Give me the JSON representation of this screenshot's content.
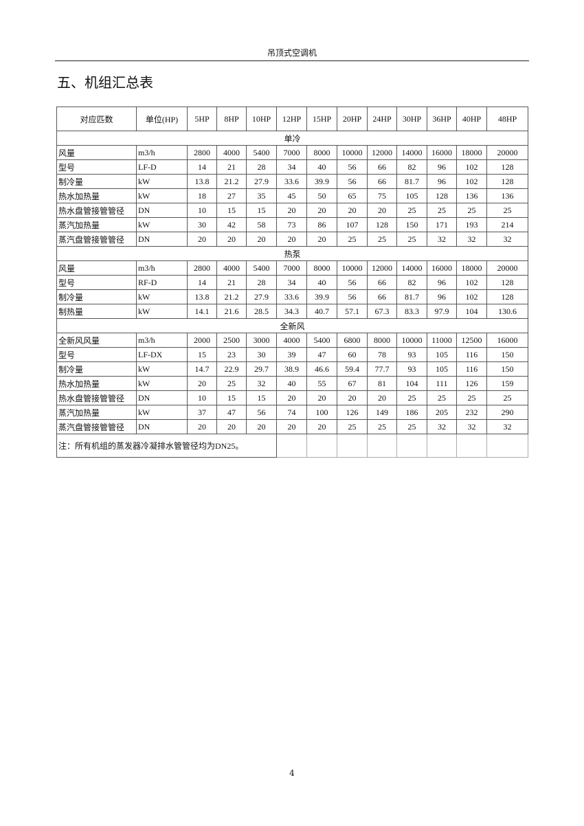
{
  "header": "吊顶式空调机",
  "title": "五、机组汇总表",
  "table": {
    "columns": [
      "对应匹数",
      "单位(HP)",
      "5HP",
      "8HP",
      "10HP",
      "12HP",
      "15HP",
      "20HP",
      "24HP",
      "30HP",
      "36HP",
      "40HP",
      "48HP"
    ],
    "sections": [
      {
        "name": "单冷",
        "rows": [
          [
            "风量",
            "m3/h",
            "2800",
            "4000",
            "5400",
            "7000",
            "8000",
            "10000",
            "12000",
            "14000",
            "16000",
            "18000",
            "20000"
          ],
          [
            "型号",
            "LF-D",
            "14",
            "21",
            "28",
            "34",
            "40",
            "56",
            "66",
            "82",
            "96",
            "102",
            "128"
          ],
          [
            "制冷量",
            "kW",
            "13.8",
            "21.2",
            "27.9",
            "33.6",
            "39.9",
            "56",
            "66",
            "81.7",
            "96",
            "102",
            "128"
          ],
          [
            "热水加热量",
            "kW",
            "18",
            "27",
            "35",
            "45",
            "50",
            "65",
            "75",
            "105",
            "128",
            "136",
            "136"
          ],
          [
            "热水盘管接管管径",
            "DN",
            "10",
            "15",
            "15",
            "20",
            "20",
            "20",
            "20",
            "25",
            "25",
            "25",
            "25"
          ],
          [
            "蒸汽加热量",
            "kW",
            "30",
            "42",
            "58",
            "73",
            "86",
            "107",
            "128",
            "150",
            "171",
            "193",
            "214"
          ],
          [
            "蒸汽盘管接管管径",
            "DN",
            "20",
            "20",
            "20",
            "20",
            "20",
            "25",
            "25",
            "25",
            "32",
            "32",
            "32"
          ]
        ]
      },
      {
        "name": "热泵",
        "rows": [
          [
            "风量",
            "m3/h",
            "2800",
            "4000",
            "5400",
            "7000",
            "8000",
            "10000",
            "12000",
            "14000",
            "16000",
            "18000",
            "20000"
          ],
          [
            "型号",
            "RF-D",
            "14",
            "21",
            "28",
            "34",
            "40",
            "56",
            "66",
            "82",
            "96",
            "102",
            "128"
          ],
          [
            "制冷量",
            "kW",
            "13.8",
            "21.2",
            "27.9",
            "33.6",
            "39.9",
            "56",
            "66",
            "81.7",
            "96",
            "102",
            "128"
          ],
          [
            "制热量",
            "kW",
            "14.1",
            "21.6",
            "28.5",
            "34.3",
            "40.7",
            "57.1",
            "67.3",
            "83.3",
            "97.9",
            "104",
            "130.6"
          ]
        ]
      },
      {
        "name": "全新风",
        "rows": [
          [
            "全新风风量",
            "m3/h",
            "2000",
            "2500",
            "3000",
            "4000",
            "5400",
            "6800",
            "8000",
            "10000",
            "11000",
            "12500",
            "16000"
          ],
          [
            "型号",
            "LF-DX",
            "15",
            "23",
            "30",
            "39",
            "47",
            "60",
            "78",
            "93",
            "105",
            "116",
            "150"
          ],
          [
            "制冷量",
            "kW",
            "14.7",
            "22.9",
            "29.7",
            "38.9",
            "46.6",
            "59.4",
            "77.7",
            "93",
            "105",
            "116",
            "150"
          ],
          [
            "热水加热量",
            "kW",
            "20",
            "25",
            "32",
            "40",
            "55",
            "67",
            "81",
            "104",
            "111",
            "126",
            "159"
          ],
          [
            "热水盘管接管管径",
            "DN",
            "10",
            "15",
            "15",
            "20",
            "20",
            "20",
            "20",
            "25",
            "25",
            "25",
            "25"
          ],
          [
            "蒸汽加热量",
            "kW",
            "37",
            "47",
            "56",
            "74",
            "100",
            "126",
            "149",
            "186",
            "205",
            "232",
            "290"
          ],
          [
            "蒸汽盘管接管管径",
            "DN",
            "20",
            "20",
            "20",
            "20",
            "20",
            "25",
            "25",
            "25",
            "32",
            "32",
            "32"
          ]
        ]
      }
    ],
    "note": "注：所有机组的蒸发器冷凝排水管管径均为DN25。"
  },
  "page_number": "4"
}
